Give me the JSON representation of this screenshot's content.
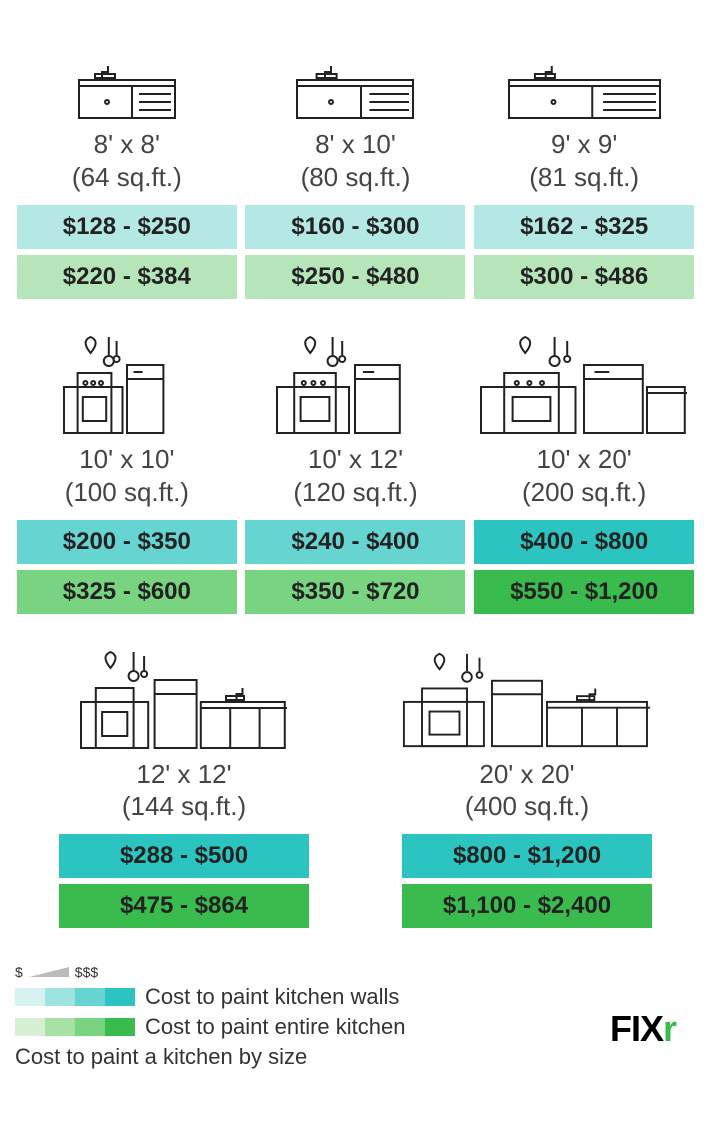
{
  "colors": {
    "teal_light": "#b3e8e5",
    "teal_mid": "#66d4d0",
    "teal_dark": "#2bc4c0",
    "green_light": "#b5e5b8",
    "green_mid": "#78d481",
    "green_dark": "#3abb4e"
  },
  "rows": [
    {
      "cards": [
        {
          "dim": "8' x 8'",
          "sqft": "(64 sq.ft.)",
          "walls": "$128 - $250",
          "walls_color": "#b3e8e5",
          "entire": "$220 - $384",
          "entire_color": "#b5e5b8",
          "icon": "sink-small"
        },
        {
          "dim": "8' x 10'",
          "sqft": "(80 sq.ft.)",
          "walls": "$160 - $300",
          "walls_color": "#b3e8e5",
          "entire": "$250 - $480",
          "entire_color": "#b5e5b8",
          "icon": "sink-med"
        },
        {
          "dim": "9' x 9'",
          "sqft": "(81 sq.ft.)",
          "walls": "$162 - $325",
          "walls_color": "#b3e8e5",
          "entire": "$300 - $486",
          "entire_color": "#b5e5b8",
          "icon": "sink-large"
        }
      ]
    },
    {
      "cards": [
        {
          "dim": "10' x 10'",
          "sqft": "(100 sq.ft.)",
          "walls": "$200 - $350",
          "walls_color": "#66d4d0",
          "entire": "$325 - $600",
          "entire_color": "#78d481",
          "icon": "stove-small"
        },
        {
          "dim": "10' x 12'",
          "sqft": "(120 sq.ft.)",
          "walls": "$240 - $400",
          "walls_color": "#66d4d0",
          "entire": "$350 - $720",
          "entire_color": "#78d481",
          "icon": "stove-med"
        },
        {
          "dim": "10' x 20'",
          "sqft": "(200 sq.ft.)",
          "walls": "$400 - $800",
          "walls_color": "#2bc4c0",
          "entire": "$550 - $1,200",
          "entire_color": "#3abb4e",
          "icon": "stove-large"
        }
      ]
    },
    {
      "cards": [
        {
          "dim": "12' x 12'",
          "sqft": "(144 sq.ft.)",
          "walls": "$288 - $500",
          "walls_color": "#2bc4c0",
          "entire": "$475 - $864",
          "entire_color": "#3abb4e",
          "icon": "full-med"
        },
        {
          "dim": "20' x 20'",
          "sqft": "(400 sq.ft.)",
          "walls": "$800 - $1,200",
          "walls_color": "#2bc4c0",
          "entire": "$1,100 - $2,400",
          "entire_color": "#3abb4e",
          "icon": "full-large"
        }
      ]
    }
  ],
  "legend": {
    "scale_low": "$",
    "scale_high": "$$$",
    "walls_label": "Cost to paint kitchen walls",
    "entire_label": "Cost to paint entire kitchen",
    "caption": "Cost to paint a kitchen by size",
    "teal_swatches": [
      "#d6f2f1",
      "#9de3e0",
      "#66d4d0",
      "#2bc4c0"
    ],
    "green_swatches": [
      "#d7f0d4",
      "#a6e2a6",
      "#78d481",
      "#3abb4e"
    ]
  },
  "logo": {
    "text": "FIX",
    "accent": "r"
  }
}
